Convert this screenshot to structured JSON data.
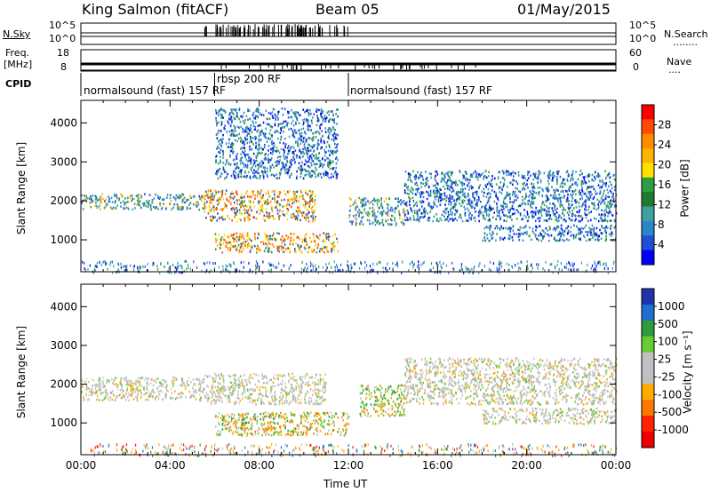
{
  "header": {
    "station": "King Salmon (fitACF)",
    "beam": "Beam 05",
    "date": "01/May/2015"
  },
  "summary_panels": {
    "nsky_label": "N.Sky",
    "nsearch_label": "N.Search",
    "nsearch_marker": "........",
    "nsky_ticks": [
      "10^5",
      "10^0"
    ],
    "nsearch_ticks": [
      "10^5",
      "10^0"
    ],
    "freq_label": "Freq.",
    "freq_unit": "[MHz]",
    "freq_ticks": [
      "18",
      "8"
    ],
    "nave_label": "Nave",
    "nave_marker": "....",
    "nave_ticks": [
      "60",
      "0"
    ],
    "cpid_label": "CPID",
    "cpid_segments": [
      {
        "label": "normalsound (fast) 157 RF"
      },
      {
        "label": "rbsp 200 RF"
      },
      {
        "label": "normalsound (fast) 157 RF"
      }
    ]
  },
  "chart_data": [
    {
      "type": "heatmap",
      "panel": "power",
      "ylabel": "Slant Range [km]",
      "ylim": [
        180,
        4580
      ],
      "yticks": [
        1000,
        2000,
        3000,
        4000
      ],
      "colorbar_label": "Power [dB]",
      "colorbar_ticks": [
        "28",
        "24",
        "20",
        "16",
        "12",
        "8",
        "4"
      ],
      "colorbar_colors": [
        "#ff0000",
        "#ff4a00",
        "#ff8c00",
        "#ffb300",
        "#ffe000",
        "#2e9e45",
        "#1f7a2f",
        "#3fa0a0",
        "#2b86c8",
        "#1f4fd6",
        "#0000ff"
      ],
      "bands": [
        {
          "t": [
            0.0,
            5.5
          ],
          "r": [
            1800,
            2200
          ],
          "level": "high"
        },
        {
          "t": [
            5.5,
            10.5
          ],
          "r": [
            1500,
            2300
          ],
          "level": "max"
        },
        {
          "t": [
            6.0,
            11.5
          ],
          "r": [
            700,
            1200
          ],
          "level": "max"
        },
        {
          "t": [
            6.0,
            11.5
          ],
          "r": [
            2600,
            4400
          ],
          "level": "low"
        },
        {
          "t": [
            12.0,
            14.5
          ],
          "r": [
            1400,
            2100
          ],
          "level": "high"
        },
        {
          "t": [
            14.5,
            24.0
          ],
          "r": [
            1500,
            2800
          ],
          "level": "low"
        },
        {
          "t": [
            18.0,
            24.0
          ],
          "r": [
            1000,
            1400
          ],
          "level": "low"
        }
      ]
    },
    {
      "type": "heatmap",
      "panel": "velocity",
      "ylabel": "Slant Range [km]",
      "ylim": [
        180,
        4580
      ],
      "yticks": [
        1000,
        2000,
        3000,
        4000
      ],
      "colorbar_label": "Velocity [m s⁻¹]",
      "colorbar_ticks": [
        "1000",
        "500",
        "100",
        "25",
        "-25",
        "-100",
        "-500",
        "-1000"
      ],
      "colorbar_colors": [
        "#2233aa",
        "#1f6fd0",
        "#2c9b3c",
        "#66cc33",
        "#c0c0c0",
        "#c0c0c0",
        "#ffaa00",
        "#ff7700",
        "#ff2200",
        "#ee0000"
      ],
      "bands": [
        {
          "t": [
            0.0,
            5.5
          ],
          "r": [
            1600,
            2200
          ],
          "level": "ground"
        },
        {
          "t": [
            5.5,
            11.0
          ],
          "r": [
            1500,
            2300
          ],
          "level": "ground"
        },
        {
          "t": [
            6.0,
            12.0
          ],
          "r": [
            700,
            1300
          ],
          "level": "neg"
        },
        {
          "t": [
            12.5,
            14.5
          ],
          "r": [
            1200,
            2000
          ],
          "level": "negpos"
        },
        {
          "t": [
            14.5,
            24.0
          ],
          "r": [
            1500,
            2700
          ],
          "level": "ground"
        },
        {
          "t": [
            18.0,
            24.0
          ],
          "r": [
            1000,
            1400
          ],
          "level": "ground"
        }
      ]
    }
  ],
  "time_axis": {
    "label": "Time UT",
    "ticks": [
      "00:00",
      "04:00",
      "08:00",
      "12:00",
      "16:00",
      "20:00",
      "00:00"
    ]
  }
}
